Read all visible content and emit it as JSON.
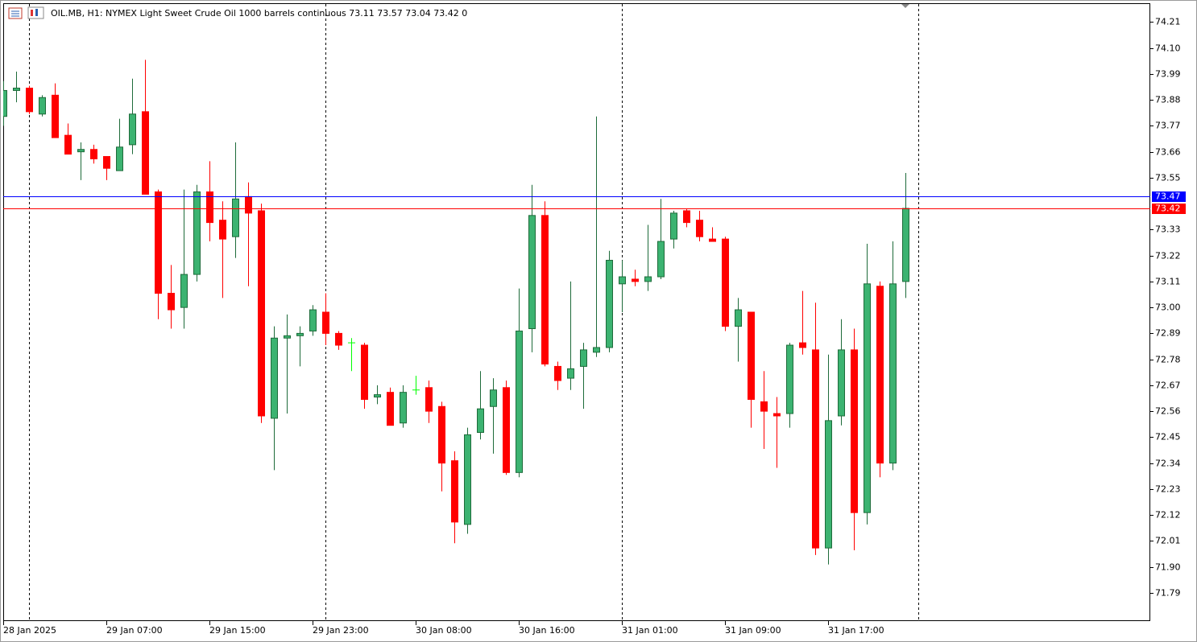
{
  "chart_data": {
    "type": "candlestick",
    "title": "OIL.MB, H1:  NYMEX Light Sweet Crude Oil 1000 barrels continuous  73.11 73.57 73.04 73.42  0",
    "categories": [
      "28 Jan 2025",
      null,
      null,
      null,
      null,
      null,
      null,
      null,
      "29 Jan 07:00",
      null,
      null,
      null,
      null,
      null,
      null,
      null,
      "29 Jan 15:00",
      null,
      null,
      null,
      null,
      null,
      null,
      null,
      "29 Jan 23:00",
      null,
      null,
      null,
      null,
      null,
      null,
      null,
      "30 Jan 08:00",
      null,
      null,
      null,
      null,
      null,
      null,
      null,
      "30 Jan 16:00",
      null,
      null,
      null,
      null,
      null,
      null,
      null,
      "31 Jan 01:00",
      null,
      null,
      null,
      null,
      null,
      null,
      null,
      "31 Jan 09:00",
      null,
      null,
      null,
      null,
      null,
      null,
      null,
      "31 Jan 17:00",
      null,
      null,
      null,
      null,
      null,
      null
    ],
    "open": [
      73.81,
      73.92,
      73.93,
      73.82,
      73.9,
      73.73,
      73.66,
      73.67,
      73.64,
      73.58,
      73.69,
      73.83,
      73.49,
      73.06,
      73.0,
      73.14,
      73.49,
      73.37,
      73.3,
      73.47,
      73.41,
      72.53,
      72.87,
      72.88,
      72.9,
      72.98,
      72.89,
      72.85,
      72.84,
      72.62,
      72.64,
      72.51,
      72.65,
      72.66,
      72.58,
      72.35,
      72.08,
      72.47,
      72.58,
      72.66,
      72.3,
      72.91,
      73.39,
      72.75,
      72.7,
      72.75,
      72.81,
      72.83,
      73.1,
      73.12,
      73.11,
      73.13,
      73.29,
      73.41,
      73.37,
      73.29,
      73.29,
      72.92,
      72.98,
      72.6,
      72.55,
      72.55,
      72.85,
      72.82,
      71.98,
      72.54,
      72.82,
      72.13,
      73.09,
      72.34,
      73.11
    ],
    "high": [
      73.96,
      74.0,
      73.94,
      73.9,
      73.95,
      73.78,
      73.7,
      73.69,
      73.64,
      73.8,
      73.97,
      74.05,
      73.5,
      73.18,
      73.5,
      73.52,
      73.62,
      73.45,
      73.7,
      73.53,
      73.44,
      72.92,
      72.97,
      72.92,
      73.01,
      73.06,
      72.9,
      72.87,
      72.85,
      72.67,
      72.66,
      72.67,
      72.71,
      72.69,
      72.6,
      72.39,
      72.49,
      72.73,
      72.7,
      72.69,
      73.08,
      73.52,
      73.45,
      72.77,
      73.11,
      72.85,
      73.81,
      73.24,
      73.2,
      73.16,
      73.35,
      73.46,
      73.41,
      73.42,
      73.41,
      73.34,
      73.3,
      73.04,
      72.98,
      72.73,
      72.62,
      72.85,
      73.07,
      73.02,
      72.8,
      72.95,
      72.91,
      73.27,
      73.11,
      73.28,
      73.57
    ],
    "low": [
      73.77,
      73.87,
      73.82,
      73.81,
      73.72,
      73.65,
      73.54,
      73.61,
      73.54,
      73.58,
      73.65,
      73.48,
      72.95,
      72.91,
      72.91,
      73.11,
      73.28,
      73.04,
      73.21,
      73.09,
      72.51,
      72.31,
      72.55,
      72.75,
      72.88,
      72.84,
      72.82,
      72.73,
      72.57,
      72.59,
      72.5,
      72.49,
      72.63,
      72.51,
      72.22,
      72.0,
      72.04,
      72.44,
      72.38,
      72.29,
      72.28,
      72.81,
      72.75,
      72.65,
      72.65,
      72.57,
      72.79,
      72.81,
      72.98,
      73.09,
      73.07,
      73.12,
      73.25,
      73.34,
      73.28,
      73.28,
      72.9,
      72.77,
      72.49,
      72.4,
      72.32,
      72.49,
      72.8,
      71.95,
      71.91,
      72.5,
      71.97,
      72.08,
      72.28,
      72.31,
      73.04
    ],
    "close": [
      73.92,
      73.93,
      73.83,
      73.89,
      73.72,
      73.65,
      73.67,
      73.63,
      73.59,
      73.68,
      73.82,
      73.48,
      73.06,
      72.99,
      73.14,
      73.49,
      73.36,
      73.29,
      73.46,
      73.4,
      72.54,
      72.87,
      72.88,
      72.89,
      72.99,
      72.89,
      72.84,
      72.85,
      72.61,
      72.63,
      72.5,
      72.64,
      72.65,
      72.56,
      72.34,
      72.09,
      72.46,
      72.57,
      72.65,
      72.3,
      72.9,
      73.39,
      72.76,
      72.69,
      72.74,
      72.82,
      72.83,
      73.2,
      73.13,
      73.11,
      73.13,
      73.28,
      73.4,
      73.36,
      73.3,
      73.28,
      72.92,
      72.99,
      72.61,
      72.56,
      72.54,
      72.84,
      72.83,
      71.98,
      72.52,
      72.82,
      72.13,
      73.1,
      72.34,
      73.1,
      73.42
    ],
    "up_color": "#3cb371",
    "down_color": "#ff0000",
    "doji_color": "#00ff00",
    "wick_up_color": "#1e6b3a",
    "ylim": [
      71.67,
      74.29
    ],
    "yticks": [
      74.21,
      {
        "value": 74.1,
        "label": "74.10"
      },
      73.99,
      73.88,
      73.77,
      73.66,
      73.55,
      73.33,
      73.22,
      73.11,
      {
        "value": 73.0,
        "label": "73.00"
      },
      72.89,
      72.78,
      72.67,
      72.56,
      72.45,
      72.34,
      72.23,
      72.12,
      72.01,
      {
        "value": 71.9,
        "label": "71.90"
      },
      71.79
    ],
    "price_lines": [
      {
        "value": 73.47,
        "color": "#0000ff"
      },
      {
        "value": 73.42,
        "color": "#ff0000"
      }
    ]
  }
}
